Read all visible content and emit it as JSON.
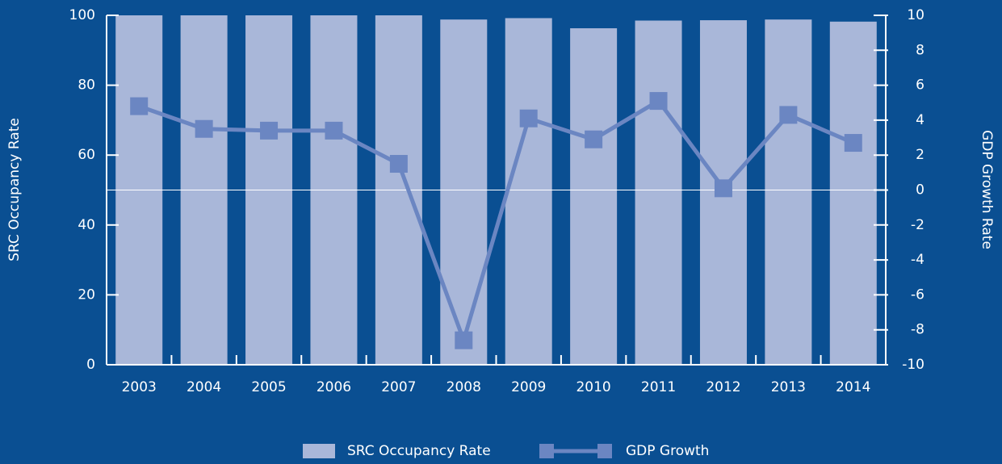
{
  "chart_data": {
    "type": "bar_line",
    "categories": [
      "2003",
      "2004",
      "2005",
      "2006",
      "2007",
      "2008",
      "2009",
      "2010",
      "2011",
      "2012",
      "2013",
      "2014"
    ],
    "series": [
      {
        "name": "SRC Occupancy Rate",
        "type": "bar",
        "color": "#a9b7d9",
        "values": [
          100,
          100,
          100,
          100,
          100,
          98.8,
          99.2,
          96.3,
          98.5,
          98.6,
          98.8,
          98.2
        ]
      },
      {
        "name": "GDP Growth",
        "type": "line",
        "axis": "y2",
        "color": "#6b86c2",
        "values": [
          4.8,
          3.5,
          3.4,
          3.4,
          1.5,
          -8.6,
          4.1,
          2.9,
          5.1,
          0.1,
          4.3,
          2.7
        ]
      }
    ],
    "ylabel": "SRC Occupancy Rate",
    "y2label": "GDP Growth Rate",
    "ylim": [
      0,
      100
    ],
    "yticks": [
      0,
      20,
      40,
      60,
      80,
      100
    ],
    "y2lim": [
      -10,
      10
    ],
    "y2ticks": [
      -10,
      -8,
      -6,
      -4,
      -2,
      0,
      2,
      4,
      6,
      8,
      10
    ],
    "legend": "bottom"
  }
}
